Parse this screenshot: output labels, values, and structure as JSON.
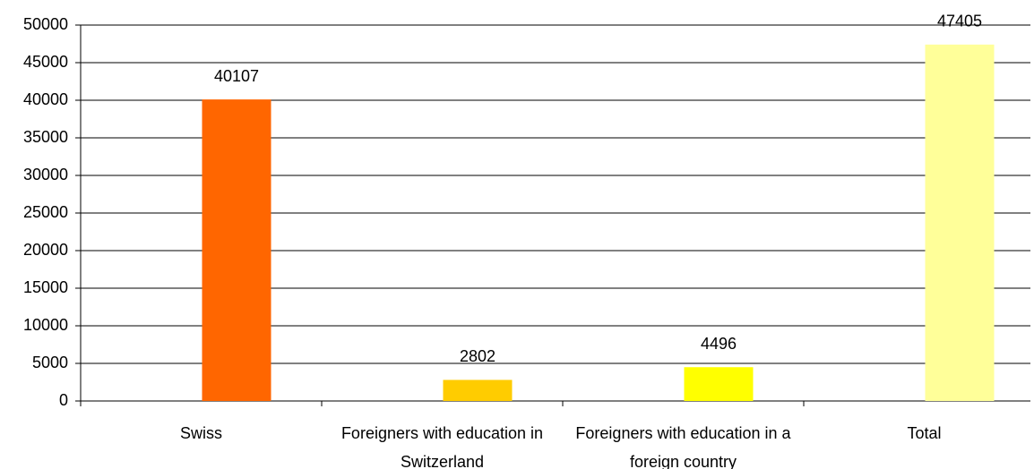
{
  "chart_data": {
    "type": "bar",
    "categories": [
      "Swiss",
      "Foreigners with education in Switzerland",
      "Foreigners with education in a foreign country",
      "Total"
    ],
    "values": [
      40107,
      2802,
      4496,
      47405
    ],
    "colors": [
      "#ff6600",
      "#ffcc00",
      "#ffff00",
      "#ffff99"
    ],
    "ylim": [
      0,
      50000
    ],
    "yticks": [
      0,
      5000,
      10000,
      15000,
      20000,
      25000,
      30000,
      35000,
      40000,
      45000,
      50000
    ],
    "grid": true
  }
}
